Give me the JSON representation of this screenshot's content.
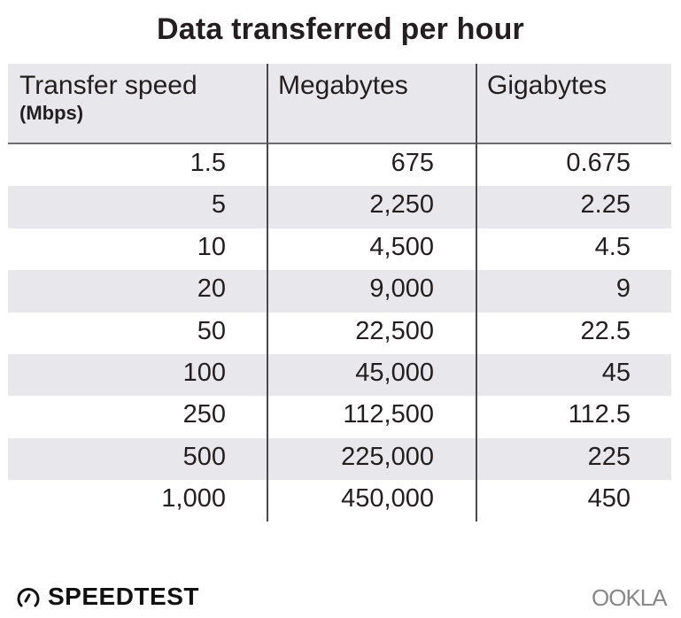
{
  "chart_data": {
    "type": "table",
    "title": "Data transferred per hour",
    "columns": [
      {
        "label": "Transfer speed",
        "sublabel": "(Mbps)"
      },
      {
        "label": "Megabytes"
      },
      {
        "label": "Gigabytes"
      }
    ],
    "rows": [
      [
        "1.5",
        "675",
        "0.675"
      ],
      [
        "5",
        "2,250",
        "2.25"
      ],
      [
        "10",
        "4,500",
        "4.5"
      ],
      [
        "20",
        "9,000",
        "9"
      ],
      [
        "50",
        "22,500",
        "22.5"
      ],
      [
        "100",
        "45,000",
        "45"
      ],
      [
        "250",
        "112,500",
        "112.5"
      ],
      [
        "500",
        "225,000",
        "225"
      ],
      [
        "1,000",
        "450,000",
        "450"
      ]
    ],
    "stripe_color": "#e8e8ec"
  },
  "branding": {
    "left_logo": "SPEEDTEST",
    "left_icon": "speedometer-icon",
    "right_logo": "OOKLA"
  }
}
